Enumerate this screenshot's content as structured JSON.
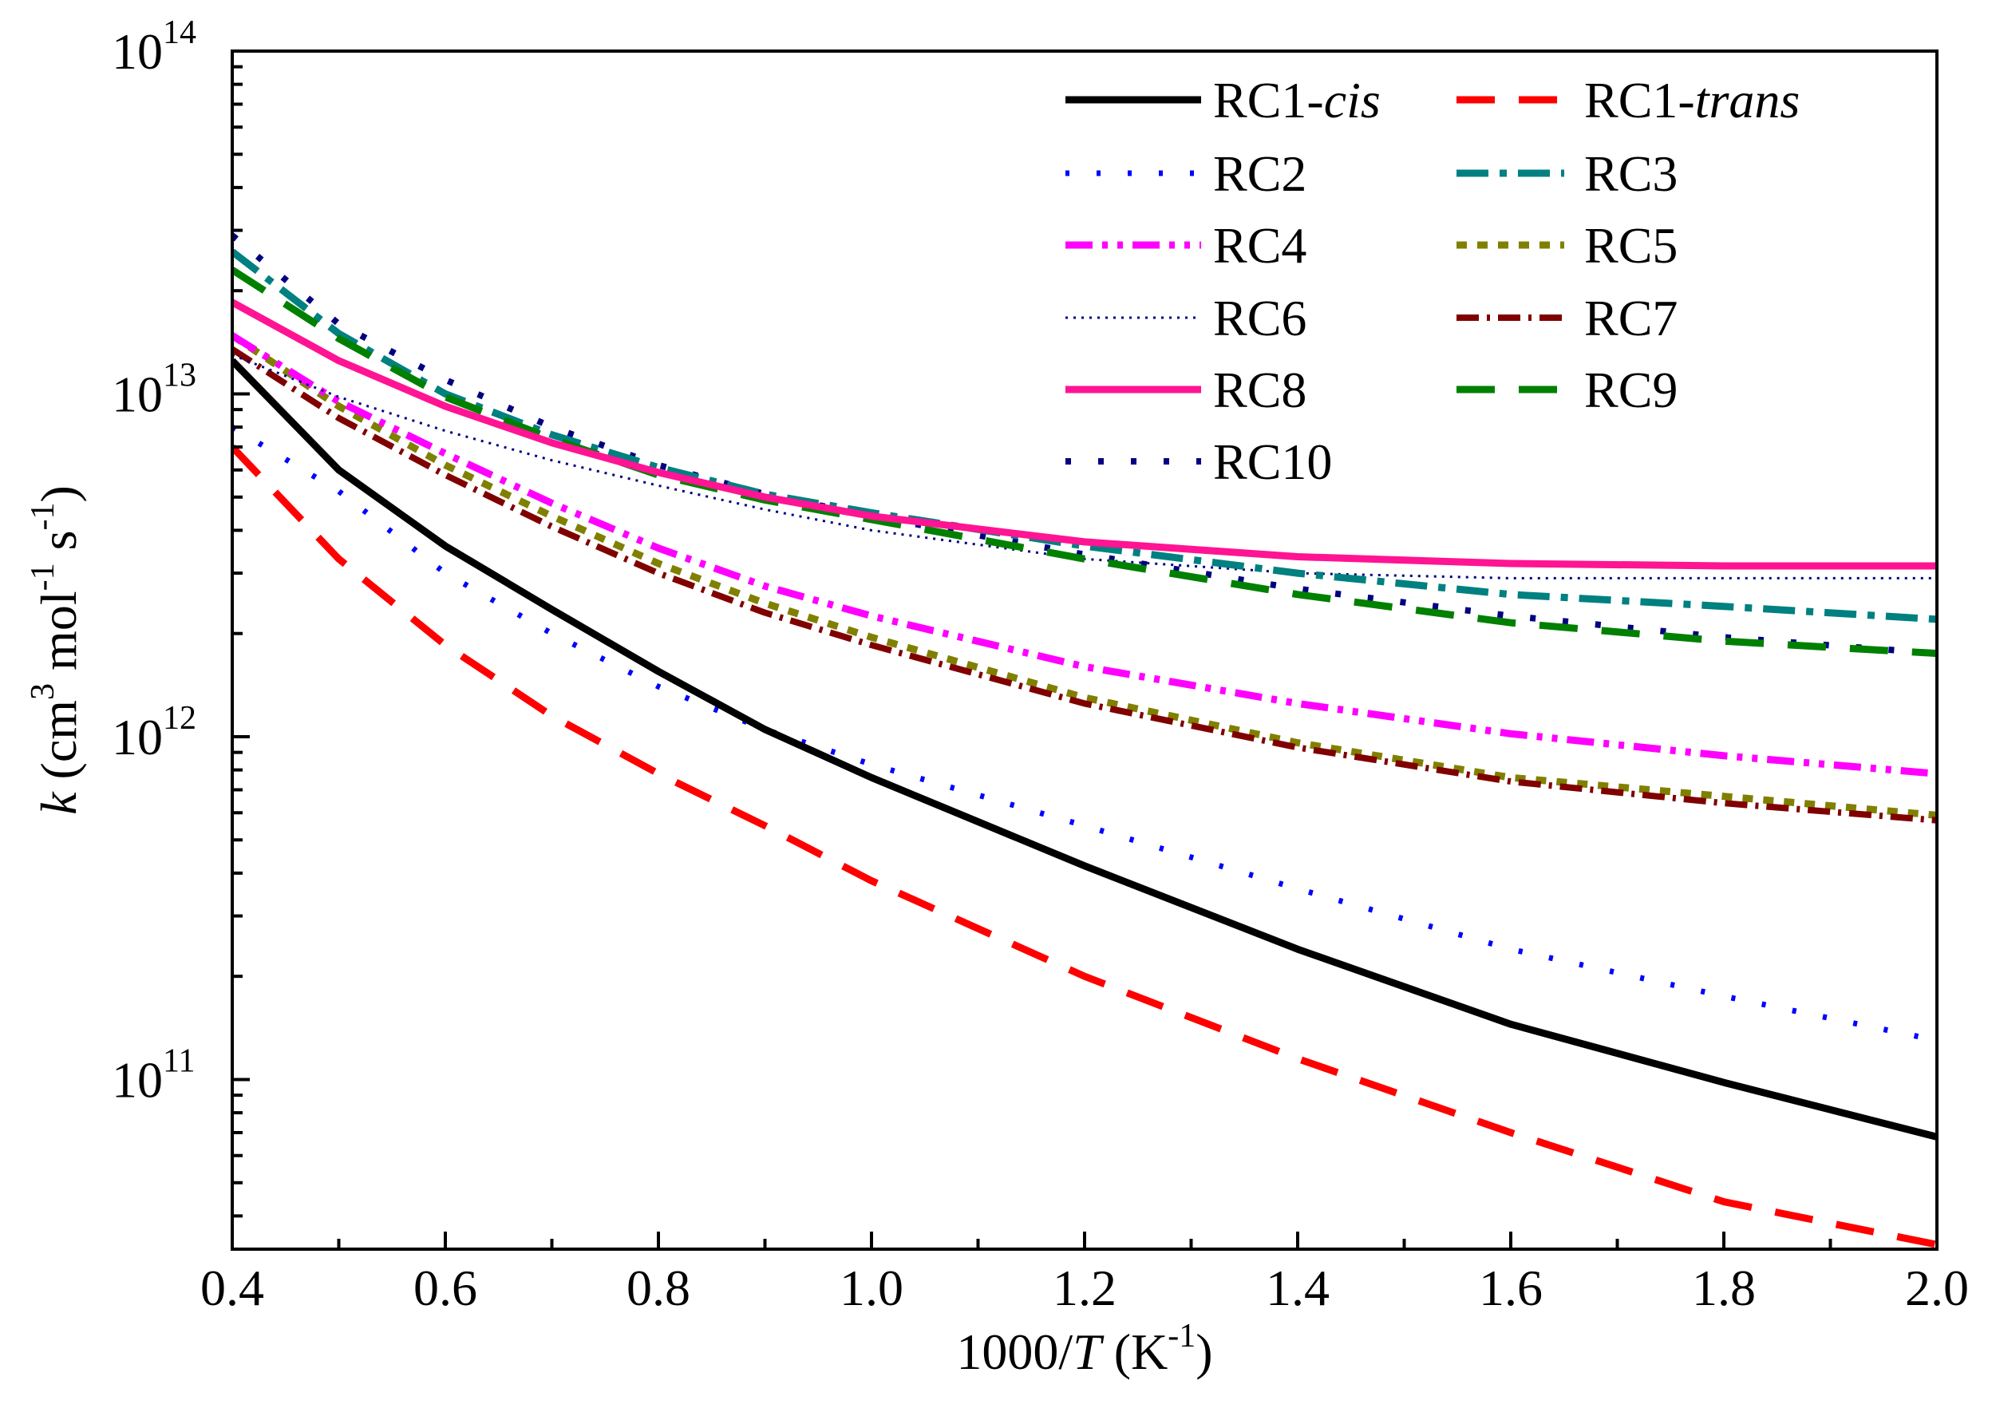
{
  "chart_data": {
    "type": "line",
    "title": "",
    "xlabel": {
      "prefix": "1000/",
      "var": "T",
      "unit_open": " (K",
      "unit_exp": "-1",
      "unit_close": ")"
    },
    "ylabel": {
      "var": "k",
      "p1": " (cm",
      "e1": "3",
      "p2": " mol",
      "e2": "-1",
      "p3": " s",
      "e3": "-1",
      "p4": ")"
    },
    "xlim": [
      0.4,
      2.0
    ],
    "ylim": [
      32000000000.0,
      100000000000000.0
    ],
    "yscale": "log",
    "x_ticks": [
      "0.4",
      "0.6",
      "0.8",
      "1.0",
      "1.2",
      "1.4",
      "1.6",
      "1.8",
      "2.0"
    ],
    "y_ticks": [
      {
        "base": "10",
        "exp": "11"
      },
      {
        "base": "10",
        "exp": "12"
      },
      {
        "base": "10",
        "exp": "13"
      },
      {
        "base": "10",
        "exp": "14"
      }
    ],
    "x": [
      0.4,
      0.5,
      0.6,
      0.7,
      0.8,
      0.9,
      1.0,
      1.2,
      1.4,
      1.6,
      1.8,
      2.0
    ],
    "series": [
      {
        "name": "RC1-",
        "name_italic": "cis",
        "color": "#000000",
        "dash": "solid",
        "values": [
          12500000000000.0,
          6000000000000.0,
          3600000000000.0,
          2350000000000.0,
          1550000000000.0,
          1050000000000.0,
          760000000000.0,
          420000000000.0,
          240000000000.0,
          145000000000.0,
          98000000000.0,
          68000000000.0
        ]
      },
      {
        "name": "RC1-",
        "name_italic": "trans",
        "color": "#ff0000",
        "dash": "long-dash",
        "values": [
          7000000000000.0,
          3300000000000.0,
          1850000000000.0,
          1150000000000.0,
          780000000000.0,
          550000000000.0,
          380000000000.0,
          200000000000.0,
          115000000000.0,
          70000000000.0,
          44000000000.0,
          33000000000.0
        ]
      },
      {
        "name": "RC2",
        "name_italic": "",
        "color": "#0000ff",
        "dash": "dot",
        "values": [
          8000000000000.0,
          5200000000000.0,
          3000000000000.0,
          2000000000000.0,
          1400000000000.0,
          1050000000000.0,
          830000000000.0,
          550000000000.0,
          360000000000.0,
          240000000000.0,
          175000000000.0,
          130000000000.0
        ]
      },
      {
        "name": "RC3",
        "name_italic": "",
        "color": "#008080",
        "dash": "dash-dot",
        "values": [
          26000000000000.0,
          15000000000000.0,
          10000000000000.0,
          7600000000000.0,
          6100000000000.0,
          5100000000000.0,
          4500000000000.0,
          3600000000000.0,
          3000000000000.0,
          2600000000000.0,
          2400000000000.0,
          2200000000000.0
        ]
      },
      {
        "name": "RC4",
        "name_italic": "",
        "color": "#ff00ff",
        "dash": "dash-dot-dot",
        "values": [
          14800000000000.0,
          9500000000000.0,
          6700000000000.0,
          4800000000000.0,
          3550000000000.0,
          2750000000000.0,
          2250000000000.0,
          1600000000000.0,
          1250000000000.0,
          1020000000000.0,
          880000000000.0,
          780000000000.0
        ]
      },
      {
        "name": "RC5",
        "name_italic": "",
        "color": "#808000",
        "dash": "short-dash",
        "values": [
          14800000000000.0,
          9200000000000.0,
          6200000000000.0,
          4400000000000.0,
          3200000000000.0,
          2450000000000.0,
          1950000000000.0,
          1300000000000.0,
          960000000000.0,
          760000000000.0,
          670000000000.0,
          590000000000.0
        ]
      },
      {
        "name": "RC6",
        "name_italic": "",
        "color": "#000080",
        "dash": "fine-dot",
        "values": [
          13000000000000.0,
          9800000000000.0,
          7800000000000.0,
          6400000000000.0,
          5400000000000.0,
          4600000000000.0,
          4000000000000.0,
          3300000000000.0,
          3000000000000.0,
          2900000000000.0,
          2900000000000.0,
          2900000000000.0
        ]
      },
      {
        "name": "RC7",
        "name_italic": "",
        "color": "#800000",
        "dash": "dash-dot-fine",
        "values": [
          13500000000000.0,
          8500000000000.0,
          5800000000000.0,
          4100000000000.0,
          3000000000000.0,
          2300000000000.0,
          1850000000000.0,
          1250000000000.0,
          930000000000.0,
          740000000000.0,
          640000000000.0,
          570000000000.0
        ]
      },
      {
        "name": "RC8",
        "name_italic": "",
        "color": "#ff1493",
        "dash": "solid",
        "values": [
          18500000000000.0,
          12500000000000.0,
          9200000000000.0,
          7200000000000.0,
          5900000000000.0,
          5000000000000.0,
          4400000000000.0,
          3700000000000.0,
          3350000000000.0,
          3200000000000.0,
          3150000000000.0,
          3150000000000.0
        ]
      },
      {
        "name": "RC9",
        "name_italic": "",
        "color": "#008000",
        "dash": "long-dash",
        "values": [
          23000000000000.0,
          14500000000000.0,
          9800000000000.0,
          7400000000000.0,
          5800000000000.0,
          4900000000000.0,
          4300000000000.0,
          3300000000000.0,
          2600000000000.0,
          2150000000000.0,
          1900000000000.0,
          1750000000000.0
        ]
      },
      {
        "name": "RC10",
        "name_italic": "",
        "color": "#000080",
        "dash": "sparse-dot",
        "values": [
          29000000000000.0,
          16000000000000.0,
          11000000000000.0,
          8000000000000.0,
          6200000000000.0,
          5100000000000.0,
          4400000000000.0,
          3400000000000.0,
          2700000000000.0,
          2250000000000.0,
          1950000000000.0,
          1750000000000.0
        ]
      }
    ],
    "legend_position": "top-right",
    "grid": false
  }
}
